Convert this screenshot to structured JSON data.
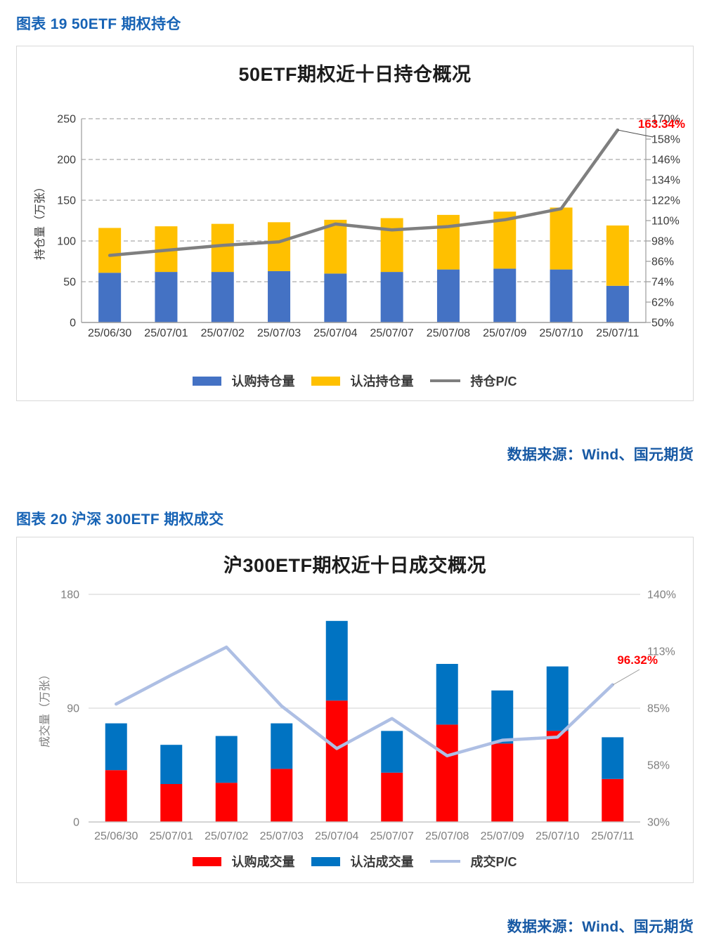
{
  "figures": [
    {
      "heading": "图表 19  50ETF 期权持仓",
      "source": "数据来源：Wind、国元期货"
    },
    {
      "heading": "图表 20  沪深 300ETF 期权成交",
      "source": "数据来源：Wind、国元期货"
    }
  ],
  "chart_data": [
    {
      "type": "stacked-bar+line",
      "title": "50ETF期权近十日持仓概况",
      "categories": [
        "25/06/30",
        "25/07/01",
        "25/07/02",
        "25/07/03",
        "25/07/04",
        "25/07/07",
        "25/07/08",
        "25/07/09",
        "25/07/10",
        "25/07/11"
      ],
      "series": [
        {
          "name": "认购持仓量",
          "type": "bar",
          "color": "#4472C4",
          "values": [
            61,
            62,
            62,
            63,
            60,
            62,
            65,
            66,
            65,
            45
          ]
        },
        {
          "name": "认沽持仓量",
          "type": "bar",
          "color": "#FFC000",
          "values": [
            55,
            56,
            59,
            60,
            66,
            66,
            67,
            70,
            76,
            74
          ]
        },
        {
          "name": "持仓P/C",
          "type": "line",
          "axis": "right",
          "color": "#7F7F7F",
          "values": [
            89.5,
            92.5,
            95.4,
            97.5,
            108,
            104.5,
            106.5,
            110.5,
            117,
            163.34
          ]
        }
      ],
      "left_axis": {
        "title": "持仓量（万张）",
        "min": 0,
        "max": 250,
        "tick_values": [
          0,
          50,
          100,
          150,
          200,
          250
        ]
      },
      "right_axis": {
        "min": 50,
        "max": 170,
        "tick_values": [
          50,
          62,
          74,
          86,
          98,
          110,
          122,
          134,
          146,
          158,
          170
        ],
        "tick_labels": [
          "50%",
          "62%",
          "74%",
          "86%",
          "98%",
          "110%",
          "122%",
          "134%",
          "146%",
          "158%",
          "170%"
        ]
      },
      "gridlines": [
        50,
        100,
        150,
        200,
        250
      ],
      "grid_style": "dashed",
      "legend_position": "bottom",
      "annotation": {
        "text": "163.34%",
        "color": "#FF0000"
      }
    },
    {
      "type": "stacked-bar+line",
      "title": "沪300ETF期权近十日成交概况",
      "categories": [
        "25/06/30",
        "25/07/01",
        "25/07/02",
        "25/07/03",
        "25/07/04",
        "25/07/07",
        "25/07/08",
        "25/07/09",
        "25/07/10",
        "25/07/11"
      ],
      "series": [
        {
          "name": "认购成交量",
          "type": "bar",
          "color": "#FF0000",
          "values": [
            41,
            30,
            31,
            42,
            96,
            39,
            77,
            62,
            72,
            34
          ]
        },
        {
          "name": "认沽成交量",
          "type": "bar",
          "color": "#0073C2",
          "values": [
            37,
            31,
            37,
            36,
            63,
            33,
            48,
            42,
            51,
            33
          ]
        },
        {
          "name": "成交P/C",
          "type": "line",
          "axis": "right",
          "color": "#AEBFE4",
          "values": [
            87,
            101,
            114.5,
            86,
            65.5,
            80,
            62,
            69.5,
            71,
            96.32
          ]
        }
      ],
      "left_axis": {
        "title": "成交量（万张）",
        "min": 0,
        "max": 180,
        "tick_values": [
          0,
          90,
          180
        ]
      },
      "right_axis": {
        "min": 30,
        "max": 140,
        "tick_values": [
          30,
          57.5,
          85,
          112.5,
          140
        ],
        "tick_labels": [
          "30%",
          "58%",
          "85%",
          "113%",
          "140%"
        ]
      },
      "gridlines": [
        90,
        180
      ],
      "grid_style": "solid",
      "legend_position": "bottom",
      "annotation": {
        "text": "96.32%",
        "color": "#FF0000"
      }
    }
  ]
}
